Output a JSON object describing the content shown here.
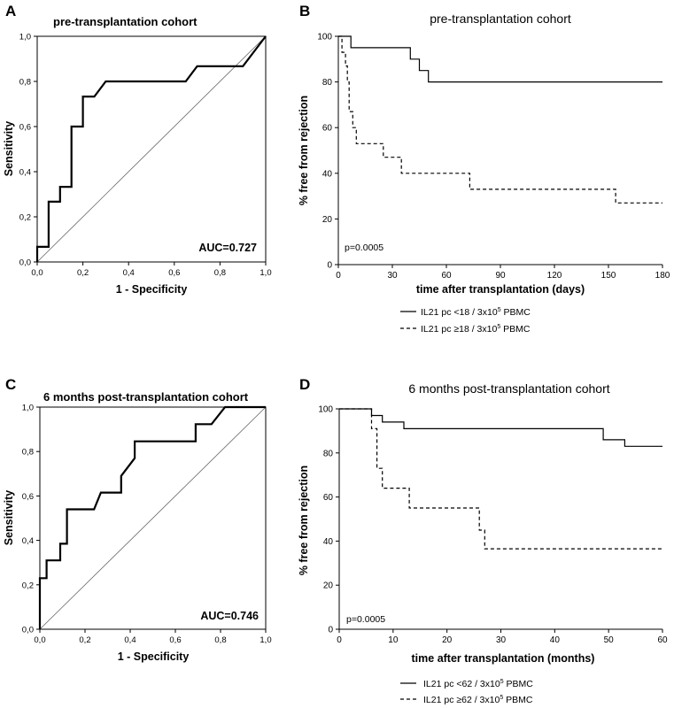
{
  "chart_data": [
    {
      "panel": "A",
      "type": "line",
      "subtype": "roc",
      "title": "pre-transplantation cohort",
      "xlabel": "1 - Specificity",
      "ylabel": "Sensitivity",
      "xlim": [
        0,
        1
      ],
      "ylim": [
        0,
        1
      ],
      "xticks": [
        "0,0",
        "0,2",
        "0,4",
        "0,6",
        "0,8",
        "1,0"
      ],
      "yticks": [
        "0,0",
        "0,2",
        "0,4",
        "0,6",
        "0,8",
        "1,0"
      ],
      "annotation": "AUC=0.727",
      "curve": {
        "x": [
          0,
          0,
          0.05,
          0.05,
          0.1,
          0.1,
          0.15,
          0.15,
          0.2,
          0.2,
          0.25,
          0.25,
          0.3,
          0.65,
          0.65,
          0.7,
          0.9,
          0.9,
          1.0
        ],
        "y": [
          0,
          0.067,
          0.067,
          0.267,
          0.267,
          0.333,
          0.333,
          0.6,
          0.6,
          0.733,
          0.733,
          0.733,
          0.8,
          0.8,
          0.8,
          0.867,
          0.867,
          0.867,
          1.0
        ]
      },
      "reference": {
        "x": [
          0,
          1
        ],
        "y": [
          0,
          1
        ]
      }
    },
    {
      "panel": "B",
      "type": "line",
      "subtype": "kaplan-meier",
      "title": "pre-transplantation cohort",
      "xlabel": "time after transplantation (days)",
      "ylabel": "% free from rejection",
      "xlim": [
        0,
        180
      ],
      "ylim": [
        0,
        100
      ],
      "xticks": [
        "0",
        "30",
        "60",
        "90",
        "120",
        "150",
        "180"
      ],
      "yticks": [
        "0",
        "20",
        "40",
        "60",
        "80",
        "100"
      ],
      "annotation": "p=0.0005",
      "series": [
        {
          "name": "IL21 pc <18 / 3x10",
          "exp": "5",
          "unit": "PBMC",
          "style": "solid",
          "x": [
            0,
            7,
            7,
            40,
            40,
            45,
            45,
            50,
            50,
            54,
            54,
            180
          ],
          "y": [
            100,
            100,
            95,
            95,
            90,
            90,
            85,
            85,
            80,
            80,
            80,
            80
          ]
        },
        {
          "name": "IL21 pc ≥18 / 3x10",
          "exp": "5",
          "unit": "PBMC",
          "style": "dashed",
          "x": [
            0,
            2,
            2,
            4,
            4,
            5,
            5,
            6,
            6,
            8,
            8,
            10,
            10,
            25,
            25,
            35,
            35,
            73,
            73,
            154,
            154,
            180
          ],
          "y": [
            100,
            100,
            93,
            93,
            87,
            87,
            80,
            80,
            67,
            67,
            60,
            60,
            53,
            53,
            47,
            47,
            40,
            40,
            33,
            33,
            27,
            27
          ]
        }
      ]
    },
    {
      "panel": "C",
      "type": "line",
      "subtype": "roc",
      "title": "6 months post-transplantation cohort",
      "xlabel": "1 - Specificity",
      "ylabel": "Sensitivity",
      "xlim": [
        0,
        1
      ],
      "ylim": [
        0,
        1
      ],
      "xticks": [
        "0,0",
        "0,2",
        "0,4",
        "0,6",
        "0,8",
        "1,0"
      ],
      "yticks": [
        "0,0",
        "0,2",
        "0,4",
        "0,6",
        "0,8",
        "1,0"
      ],
      "annotation": "AUC=0.746",
      "curve": {
        "x": [
          0,
          0,
          0.03,
          0.03,
          0.06,
          0.06,
          0.09,
          0.09,
          0.12,
          0.12,
          0.24,
          0.24,
          0.27,
          0.36,
          0.36,
          0.42,
          0.42,
          0.69,
          0.69,
          0.76,
          0.76,
          0.82,
          0.82,
          1.0
        ],
        "y": [
          0,
          0.23,
          0.23,
          0.31,
          0.31,
          0.31,
          0.31,
          0.385,
          0.385,
          0.54,
          0.54,
          0.54,
          0.615,
          0.615,
          0.69,
          0.77,
          0.846,
          0.846,
          0.923,
          0.923,
          0.923,
          1.0,
          1.0,
          1.0
        ]
      },
      "reference": {
        "x": [
          0,
          1
        ],
        "y": [
          0,
          1
        ]
      }
    },
    {
      "panel": "D",
      "type": "line",
      "subtype": "kaplan-meier",
      "title": "6 months post-transplantation cohort",
      "xlabel": "time after transplantation (months)",
      "ylabel": "% free from rejection",
      "xlim": [
        0,
        60
      ],
      "ylim": [
        0,
        100
      ],
      "xticks": [
        "0",
        "10",
        "20",
        "30",
        "40",
        "50",
        "60"
      ],
      "yticks": [
        "0",
        "20",
        "40",
        "60",
        "80",
        "100"
      ],
      "annotation": "p=0.0005",
      "series": [
        {
          "name": "IL21 pc <62 / 3x10",
          "exp": "5",
          "unit": "PBMC",
          "style": "solid",
          "x": [
            0,
            6,
            6,
            8,
            8,
            12,
            12,
            48,
            48,
            49,
            49,
            53,
            53,
            60
          ],
          "y": [
            100,
            100,
            97,
            97,
            94,
            94,
            91,
            91,
            91,
            91,
            86,
            86,
            83,
            83
          ]
        },
        {
          "name": "IL21 pc ≥62 / 3x10",
          "exp": "5",
          "unit": "PBMC",
          "style": "dashed",
          "x": [
            0,
            6,
            6,
            7,
            7,
            8,
            8,
            13,
            13,
            26,
            26,
            27,
            27,
            60
          ],
          "y": [
            100,
            100,
            91,
            91,
            73,
            73,
            64,
            64,
            55,
            55,
            45,
            45,
            36.5,
            36.5
          ]
        }
      ]
    }
  ]
}
